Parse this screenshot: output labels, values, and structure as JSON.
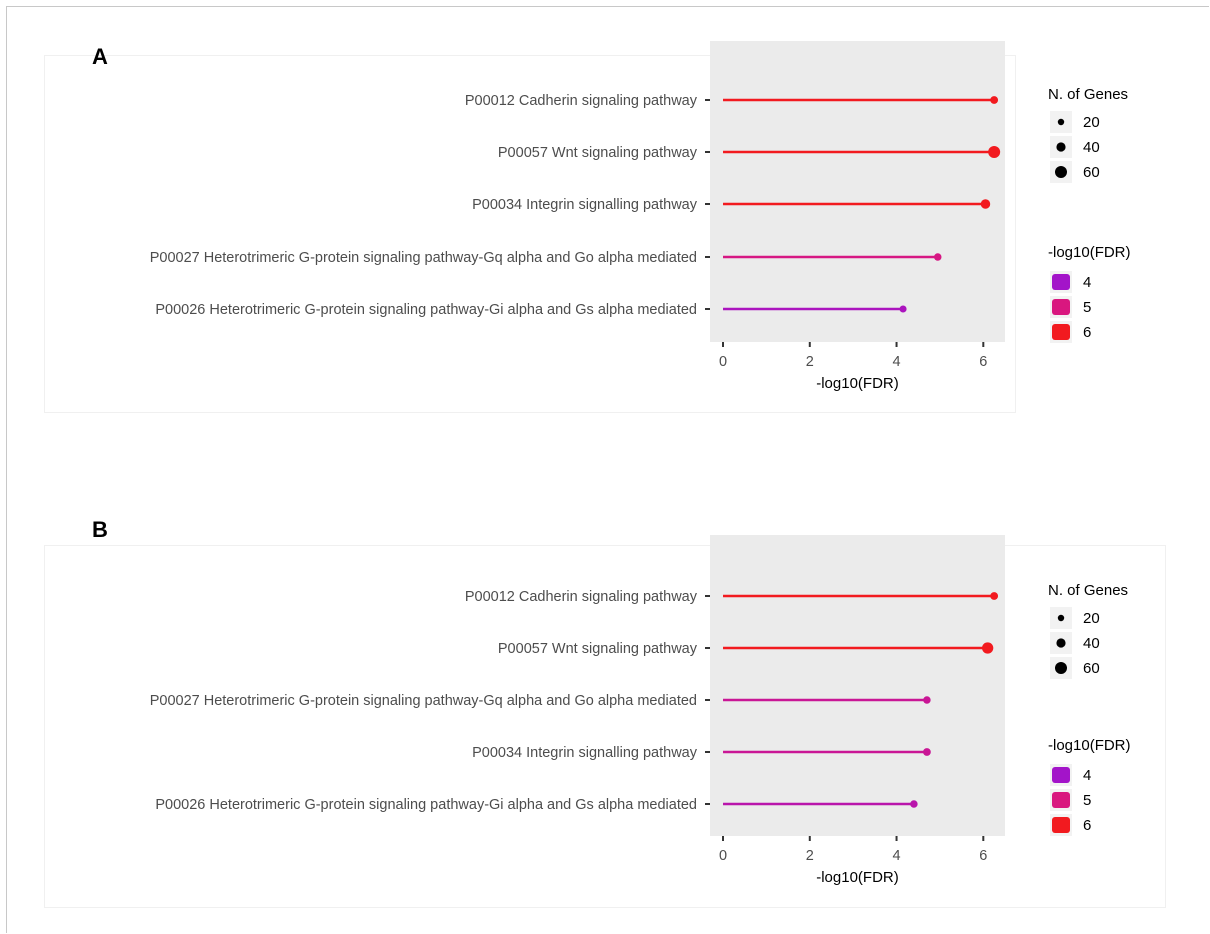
{
  "panels": {
    "a": {
      "letter": "A"
    },
    "b": {
      "letter": "B"
    }
  },
  "colors": {
    "low": "#a314c9",
    "mid": "#d9177f",
    "high": "#f21a1f",
    "panel_bg": "#ebebeb",
    "text": "#4d4d4d"
  },
  "chart_data": [
    {
      "type": "lollipop",
      "panel": "A",
      "xlabel": "-log10(FDR)",
      "ylabel": "",
      "xlim": [
        -0.3,
        6.5
      ],
      "xticks": [
        "0",
        "2",
        "4",
        "6"
      ],
      "xtick_values": [
        0,
        2,
        4,
        6
      ],
      "categories": [
        "P00012 Cadherin signaling pathway",
        "P00057 Wnt signaling pathway",
        "P00034 Integrin signalling pathway",
        "P00027 Heterotrimeric G-protein signaling pathway-Gq alpha and Go alpha mediated",
        "P00026 Heterotrimeric G-protein signaling pathway-Gi alpha and Gs alpha mediated"
      ],
      "values": [
        6.25,
        6.25,
        6.05,
        4.95,
        4.15
      ],
      "genes": [
        30,
        60,
        42,
        28,
        25
      ],
      "legend_size": {
        "title": "N. of Genes",
        "entries": [
          "20",
          "40",
          "60"
        ],
        "values": [
          20,
          40,
          60
        ]
      },
      "legend_color": {
        "title": "-log10(FDR)",
        "entries": [
          "4",
          "5",
          "6"
        ],
        "values": [
          4,
          5,
          6
        ]
      },
      "grid": false,
      "legend_position": "right"
    },
    {
      "type": "lollipop",
      "panel": "B",
      "xlabel": "-log10(FDR)",
      "ylabel": "",
      "xlim": [
        -0.3,
        6.5
      ],
      "xticks": [
        "0",
        "2",
        "4",
        "6"
      ],
      "xtick_values": [
        0,
        2,
        4,
        6
      ],
      "categories": [
        "P00012 Cadherin signaling pathway",
        "P00057 Wnt signaling pathway",
        "P00027 Heterotrimeric G-protein signaling pathway-Gq alpha and Go alpha mediated",
        "P00034 Integrin signalling pathway",
        "P00026 Heterotrimeric G-protein signaling pathway-Gi alpha and Gs alpha mediated"
      ],
      "values": [
        6.25,
        6.1,
        4.7,
        4.7,
        4.4
      ],
      "genes": [
        30,
        55,
        28,
        30,
        28
      ],
      "legend_size": {
        "title": "N. of Genes",
        "entries": [
          "20",
          "40",
          "60"
        ],
        "values": [
          20,
          40,
          60
        ]
      },
      "legend_color": {
        "title": "-log10(FDR)",
        "entries": [
          "4",
          "5",
          "6"
        ],
        "values": [
          4,
          5,
          6
        ]
      },
      "grid": false,
      "legend_position": "right"
    }
  ]
}
